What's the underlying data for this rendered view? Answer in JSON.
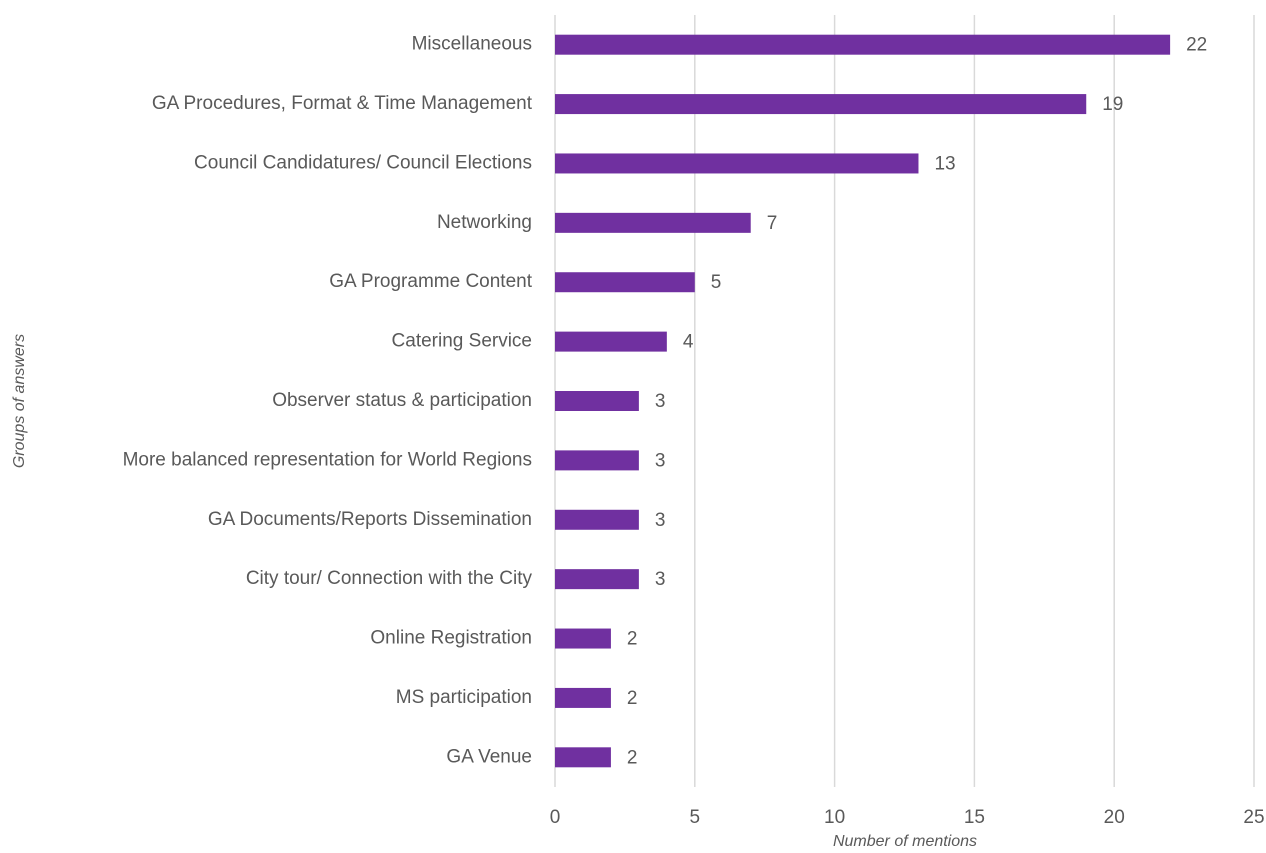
{
  "chart_data": {
    "type": "bar",
    "orientation": "horizontal",
    "xlabel": "Number of mentions",
    "ylabel": "Groups of answers",
    "categories": [
      "Miscellaneous",
      "GA Procedures, Format & Time Management",
      "Council Candidatures/ Council Elections",
      "Networking",
      "GA Programme Content",
      "Catering Service",
      "Observer status & participation",
      "More balanced representation for World Regions",
      "GA Documents/Reports Dissemination",
      "City tour/ Connection with the City",
      "Online Registration",
      "MS participation",
      "GA Venue"
    ],
    "values": [
      22,
      19,
      13,
      7,
      5,
      4,
      3,
      3,
      3,
      3,
      2,
      2,
      2
    ],
    "color": "#7030a0",
    "xlim": [
      0,
      25
    ],
    "xticks": [
      0,
      5,
      10,
      15,
      20,
      25
    ],
    "grid": true
  }
}
